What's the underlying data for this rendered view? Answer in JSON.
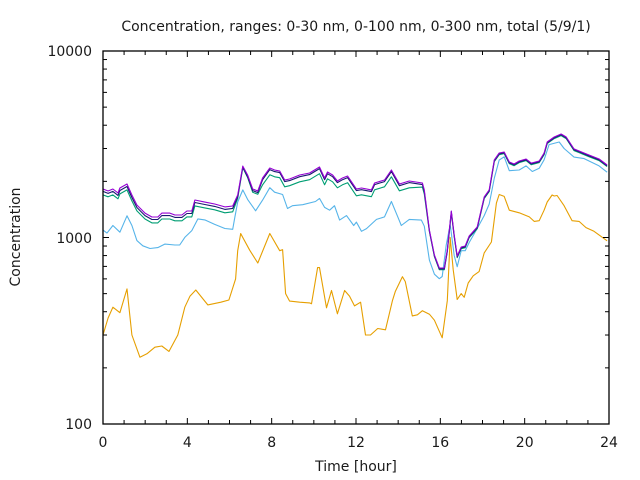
{
  "chart_data": {
    "type": "line",
    "title": "Concentration, ranges: 0-30 nm, 0-100 nm, 0-300 nm, total (5/9/1)",
    "xlabel": "Time [hour]",
    "ylabel": "Concentration",
    "xlim": [
      0,
      24
    ],
    "ylim": [
      100,
      10000
    ],
    "yscale": "log",
    "xticks": [
      0,
      4,
      8,
      12,
      16,
      20,
      24
    ],
    "xtick_labels": [
      "0",
      "4",
      "8",
      "12",
      "16",
      "20",
      "24"
    ],
    "yticks": [
      100,
      1000,
      10000
    ],
    "ytick_labels": [
      "100",
      "1000",
      "10000"
    ],
    "grid": false,
    "series": [
      {
        "name": "total",
        "color": "#9400d3",
        "x": [
          0,
          0.24,
          0.47,
          0.71,
          0.8,
          1.14,
          1.37,
          1.61,
          1.99,
          2.32,
          2.6,
          2.79,
          3.17,
          3.41,
          3.74,
          3.98,
          4.21,
          4.36,
          4.83,
          5.3,
          5.78,
          6.15,
          6.39,
          6.63,
          6.86,
          7.1,
          7.34,
          7.57,
          7.91,
          8.14,
          8.38,
          8.62,
          8.85,
          9.33,
          9.8,
          10.27,
          10.51,
          10.65,
          10.89,
          11.12,
          11.36,
          11.6,
          11.79,
          12.02,
          12.26,
          12.73,
          12.88,
          13.35,
          13.68,
          14.06,
          14.53,
          15.15,
          15.24,
          15.48,
          15.72,
          15.95,
          16.19,
          16.33,
          16.52,
          16.66,
          16.8,
          16.99,
          17.18,
          17.37,
          17.75,
          18.08,
          18.32,
          18.56,
          18.79,
          19.03,
          19.27,
          19.5,
          19.74,
          20.07,
          20.31,
          20.69,
          20.92,
          21.07,
          21.4,
          21.73,
          21.97,
          22.34,
          22.58,
          23.05,
          23.53,
          23.91
        ],
        "y": [
          1820,
          1776,
          1820,
          1733,
          1842,
          1935,
          1690,
          1493,
          1352,
          1288,
          1288,
          1352,
          1352,
          1321,
          1321,
          1387,
          1387,
          1589,
          1549,
          1513,
          1459,
          1476,
          1690,
          2415,
          2162,
          1820,
          1776,
          2084,
          2359,
          2301,
          2274,
          2034,
          2060,
          2162,
          2218,
          2388,
          2084,
          2244,
          2162,
          2009,
          2084,
          2138,
          1986,
          1820,
          1842,
          1799,
          1960,
          2034,
          2301,
          1935,
          2009,
          1960,
          1799,
          1096,
          806,
          686,
          686,
          857,
          1387,
          1031,
          796,
          889,
          900,
          1019,
          1138,
          1649,
          1799,
          2605,
          2838,
          2873,
          2540,
          2478,
          2572,
          2636,
          2506,
          2572,
          2838,
          3251,
          3458,
          3589,
          3458,
          2985,
          2909,
          2768,
          2636,
          2448
        ]
      },
      {
        "name": "",
        "color": "#191970",
        "x": [
          0,
          0.24,
          0.47,
          0.71,
          0.8,
          1.14,
          1.37,
          1.61,
          1.99,
          2.32,
          2.6,
          2.79,
          3.17,
          3.41,
          3.74,
          3.98,
          4.21,
          4.36,
          4.83,
          5.3,
          5.78,
          6.15,
          6.39,
          6.63,
          6.86,
          7.1,
          7.34,
          7.57,
          7.91,
          8.14,
          8.38,
          8.62,
          8.85,
          9.33,
          9.8,
          10.27,
          10.51,
          10.65,
          10.89,
          11.12,
          11.36,
          11.6,
          11.79,
          12.02,
          12.26,
          12.73,
          12.88,
          13.35,
          13.68,
          14.06,
          14.53,
          15.15,
          15.24,
          15.48,
          15.72,
          15.95,
          16.19,
          16.33,
          16.52,
          16.66,
          16.8,
          16.99,
          17.18,
          17.37,
          17.75,
          18.08,
          18.32,
          18.56,
          18.79,
          19.03,
          19.27,
          19.5,
          19.74,
          20.07,
          20.31,
          20.69,
          20.92,
          21.07,
          21.4,
          21.73,
          21.97,
          22.34,
          22.58,
          23.05,
          23.53,
          23.91
        ],
        "y": [
          1766,
          1723,
          1766,
          1681,
          1787,
          1877,
          1639,
          1448,
          1311,
          1249,
          1249,
          1311,
          1311,
          1281,
          1281,
          1345,
          1345,
          1541,
          1503,
          1468,
          1415,
          1432,
          1656,
          2391,
          2119,
          1784,
          1740,
          2042,
          2312,
          2255,
          2229,
          1993,
          2019,
          2119,
          2174,
          2340,
          2042,
          2199,
          2119,
          1969,
          2042,
          2095,
          1946,
          1784,
          1805,
          1763,
          1921,
          1993,
          2255,
          1896,
          1969,
          1921,
          1763,
          1085,
          798,
          679,
          679,
          848,
          1373,
          1021,
          788,
          880,
          891,
          1009,
          1127,
          1632,
          1781,
          2579,
          2810,
          2844,
          2515,
          2453,
          2546,
          2610,
          2481,
          2546,
          2810,
          3218,
          3423,
          3553,
          3423,
          2955,
          2880,
          2740,
          2610,
          2424
        ]
      },
      {
        "name": "0-300 nm",
        "color": "#009e73",
        "x": [
          0,
          0.24,
          0.47,
          0.71,
          0.8,
          1.14,
          1.37,
          1.61,
          1.99,
          2.32,
          2.6,
          2.79,
          3.17,
          3.41,
          3.74,
          3.98,
          4.21,
          4.36,
          4.83,
          5.3,
          5.78,
          6.15,
          6.39,
          6.63,
          6.86,
          7.1,
          7.34,
          7.57,
          7.91,
          8.14,
          8.38,
          8.62,
          8.85,
          9.33,
          9.8,
          10.27,
          10.51,
          10.65,
          10.89,
          11.12,
          11.36,
          11.6,
          11.79,
          12.02,
          12.26,
          12.73,
          12.88,
          13.35,
          13.68,
          14.06,
          14.53,
          15.15,
          15.24,
          15.48,
          15.72,
          15.95,
          16.19,
          16.33,
          16.52,
          16.66,
          16.8,
          16.99,
          17.18,
          17.37,
          17.75,
          18.08,
          18.32,
          18.56,
          18.79,
          19.03,
          19.27,
          19.5,
          19.74,
          20.07,
          20.31,
          20.69,
          20.92,
          21.07,
          21.4,
          21.73,
          21.97,
          22.34,
          22.58,
          23.05,
          23.53,
          23.91
        ],
        "y": [
          1693,
          1652,
          1693,
          1612,
          1713,
          1800,
          1572,
          1389,
          1257,
          1198,
          1198,
          1257,
          1257,
          1229,
          1229,
          1290,
          1290,
          1478,
          1441,
          1407,
          1357,
          1373,
          1622,
          2367,
          2097,
          1747,
          1705,
          1917,
          2170,
          2117,
          2092,
          1871,
          1895,
          1989,
          2041,
          2197,
          1917,
          2064,
          1989,
          1848,
          1917,
          1967,
          1827,
          1674,
          1695,
          1655,
          1803,
          1871,
          2117,
          1780,
          1848,
          1862,
          1709,
          1074,
          790,
          672,
          672,
          840,
          1359,
          1010,
          780,
          871,
          882,
          999,
          1115,
          1616,
          1763,
          2553,
          2781,
          2816,
          2489,
          2428,
          2521,
          2583,
          2456,
          2521,
          2781,
          3186,
          3389,
          3517,
          3389,
          2925,
          2851,
          2713,
          2583,
          2399
        ]
      },
      {
        "name": "0-100 nm",
        "color": "#56b4e9",
        "x": [
          0,
          0.19,
          0.47,
          0.8,
          1.14,
          1.37,
          1.61,
          1.89,
          2.23,
          2.6,
          2.93,
          3.41,
          3.64,
          3.88,
          4.21,
          4.5,
          4.83,
          5.3,
          5.78,
          6.15,
          6.25,
          6.39,
          6.63,
          6.86,
          7.24,
          7.57,
          7.91,
          8.14,
          8.52,
          8.75,
          8.99,
          9.47,
          10.08,
          10.27,
          10.51,
          10.75,
          10.98,
          11.22,
          11.55,
          11.89,
          12.02,
          12.26,
          12.5,
          12.97,
          13.35,
          13.68,
          13.97,
          14.15,
          14.53,
          15.1,
          15.24,
          15.48,
          15.72,
          15.95,
          16.09,
          16.28,
          16.47,
          16.66,
          16.8,
          16.99,
          17.18,
          17.37,
          17.75,
          18.08,
          18.32,
          18.56,
          18.79,
          19.03,
          19.27,
          19.74,
          20.07,
          20.36,
          20.69,
          20.92,
          21.16,
          21.64,
          21.87,
          22.34,
          22.82,
          23.53,
          23.91
        ],
        "y": [
          1096,
          1056,
          1159,
          1067,
          1308,
          1159,
          962,
          903,
          873,
          883,
          922,
          912,
          912,
          1001,
          1089,
          1258,
          1242,
          1176,
          1117,
          1107,
          1280,
          1550,
          1800,
          1600,
          1390,
          1587,
          1850,
          1750,
          1700,
          1430,
          1480,
          1500,
          1560,
          1620,
          1450,
          1400,
          1480,
          1240,
          1310,
          1159,
          1210,
          1080,
          1116,
          1250,
          1290,
          1560,
          1300,
          1160,
          1250,
          1240,
          1150,
          756,
          636,
          601,
          618,
          910,
          1176,
          800,
          697,
          850,
          850,
          940,
          1117,
          1310,
          1510,
          2080,
          2605,
          2710,
          2280,
          2300,
          2420,
          2260,
          2350,
          2610,
          3150,
          3250,
          3000,
          2700,
          2650,
          2420,
          2240
        ]
      },
      {
        "name": "0-30 nm",
        "color": "#e69f00",
        "x": [
          0,
          0.24,
          0.47,
          0.8,
          1.14,
          1.37,
          1.75,
          2.08,
          2.46,
          2.79,
          3.13,
          3.55,
          3.88,
          4.12,
          4.4,
          4.97,
          5.59,
          5.97,
          6.29,
          6.39,
          6.53,
          6.63,
          6.96,
          7.34,
          7.91,
          8.38,
          8.52,
          8.66,
          8.85,
          9.33,
          9.8,
          9.89,
          10.18,
          10.27,
          10.6,
          10.84,
          11.12,
          11.46,
          11.69,
          11.93,
          12.22,
          12.45,
          12.69,
          13.03,
          13.4,
          13.73,
          13.87,
          14.2,
          14.34,
          14.67,
          14.91,
          15.15,
          15.48,
          15.72,
          16.09,
          16.33,
          16.47,
          16.61,
          16.8,
          16.99,
          17.13,
          17.32,
          17.56,
          17.84,
          18.08,
          18.42,
          18.66,
          18.79,
          19.03,
          19.27,
          19.74,
          20.22,
          20.45,
          20.69,
          20.92,
          21.07,
          21.3,
          21.4,
          21.54,
          21.87,
          22.25,
          22.58,
          22.91,
          23.29,
          23.91
        ],
        "y": [
          300,
          370,
          423,
          395,
          530,
          300,
          228,
          238,
          258,
          262,
          245,
          300,
          423,
          484,
          523,
          435,
          450,
          462,
          600,
          850,
          1050,
          1000,
          855,
          730,
          1050,
          850,
          860,
          500,
          456,
          450,
          446,
          441,
          690,
          690,
          420,
          520,
          390,
          520,
          485,
          430,
          450,
          300,
          300,
          325,
          320,
          460,
          515,
          616,
          580,
          380,
          385,
          405,
          388,
          360,
          290,
          458,
          1000,
          672,
          465,
          500,
          478,
          570,
          623,
          656,
          827,
          946,
          1530,
          1700,
          1660,
          1400,
          1356,
          1290,
          1220,
          1230,
          1400,
          1550,
          1690,
          1670,
          1680,
          1480,
          1230,
          1220,
          1130,
          1080,
          960
        ]
      }
    ]
  }
}
